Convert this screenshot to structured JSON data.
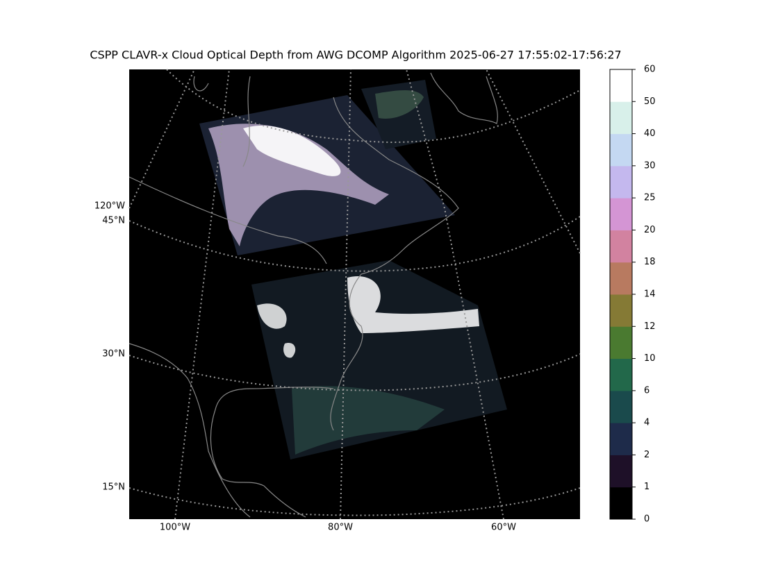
{
  "title": "CSPP CLAVR-x Cloud Optical Depth from AWG DCOMP Algorithm 2025-06-27 17:55:02-17:56:27",
  "map": {
    "lat_labels": [
      "45°N",
      "30°N",
      "15°N"
    ],
    "lon_labels_left": [
      "120°W"
    ],
    "lon_labels_bottom": [
      "100°W",
      "80°W",
      "60°W"
    ]
  },
  "colorbar": {
    "ticks": [
      0,
      1,
      2,
      4,
      6,
      10,
      12,
      14,
      18,
      20,
      25,
      30,
      40,
      50,
      60
    ],
    "colors": [
      "#000000",
      "#1e1028",
      "#1e2b4a",
      "#1a4a4c",
      "#22684a",
      "#4a7a30",
      "#857a35",
      "#b87a60",
      "#d282a0",
      "#d495d4",
      "#c4b8ee",
      "#c4d8f2",
      "#d8f0ea",
      "#ffffff"
    ]
  }
}
